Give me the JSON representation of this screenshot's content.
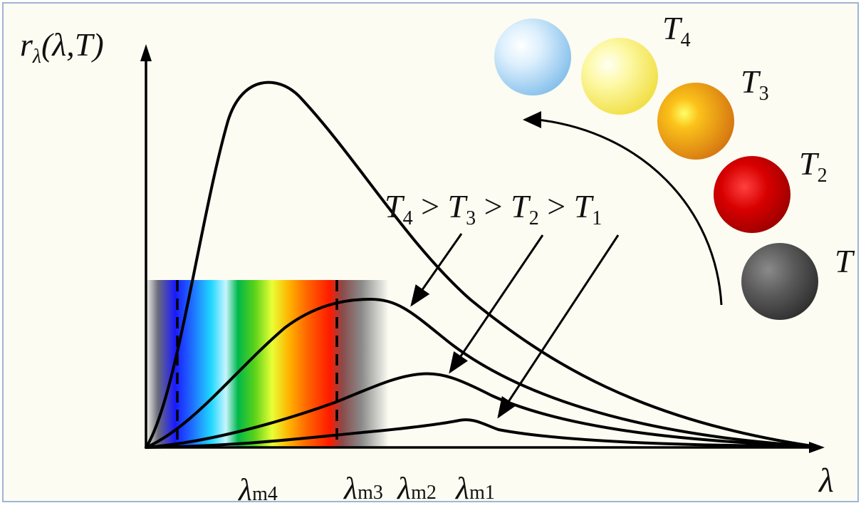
{
  "axes": {
    "y_label": {
      "r": "r",
      "sub": "λ",
      "args": "(λ,T)"
    },
    "x_label": "λ"
  },
  "inequality": {
    "terms": [
      {
        "T": "T",
        "sub": "4"
      },
      {
        "T": "T",
        "sub": "3"
      },
      {
        "T": "T",
        "sub": "2"
      },
      {
        "T": "T",
        "sub": "1"
      }
    ],
    "operator": ">"
  },
  "peak_labels": [
    {
      "lambda": "λ",
      "sub": "m4"
    },
    {
      "lambda": "λ",
      "sub": "m3"
    },
    {
      "lambda": "λ",
      "sub": "m2"
    },
    {
      "lambda": "λ",
      "sub": "m1"
    }
  ],
  "sphere_labels": [
    {
      "T": "T",
      "sub": "4"
    },
    {
      "T": "T",
      "sub": "3"
    },
    {
      "T": "T",
      "sub": "2"
    },
    {
      "T": "T",
      "sub": ""
    }
  ],
  "colors": {
    "background": "#fcfcf2",
    "sphere_t4_hot": "#a8d4f2",
    "sphere_t4": "#f7ef7a",
    "sphere_t3": "#f09a18",
    "sphere_t2": "#cc0000",
    "sphere_t1": "#555555"
  }
}
